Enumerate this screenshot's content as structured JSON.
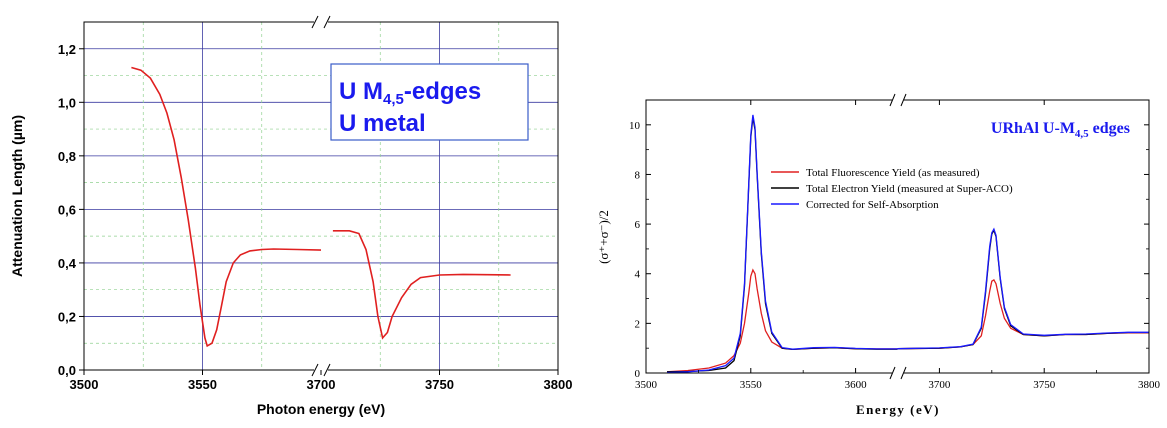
{
  "chart_data": [
    {
      "type": "line",
      "title": "",
      "annotation": {
        "line1_base": "U M",
        "line1_sub": "4,5",
        "line1_tail": "-edges",
        "line2": "U metal"
      },
      "xlabel": "Photon energy (eV)",
      "ylabel": "Attenuation Length (µm)",
      "x_ticks": [
        "3500",
        "3550",
        "3700",
        "3750",
        "3800"
      ],
      "y_ticks": [
        "0,0",
        "0,2",
        "0,4",
        "0,6",
        "0,8",
        "1,0",
        "1,2"
      ],
      "ylim": [
        0,
        1.3
      ],
      "broken_x_axis": true,
      "x_segments": [
        [
          3500,
          3600
        ],
        [
          3700,
          3800
        ]
      ],
      "grid": true,
      "series": [
        {
          "color": "#e02020",
          "segment1": [
            [
              3520,
              1.13
            ],
            [
              3524,
              1.12
            ],
            [
              3528,
              1.09
            ],
            [
              3532,
              1.03
            ],
            [
              3535,
              0.96
            ],
            [
              3538,
              0.86
            ],
            [
              3541,
              0.72
            ],
            [
              3544,
              0.56
            ],
            [
              3547,
              0.38
            ],
            [
              3549,
              0.24
            ],
            [
              3551,
              0.12
            ],
            [
              3552,
              0.09
            ],
            [
              3554,
              0.1
            ],
            [
              3556,
              0.15
            ],
            [
              3558,
              0.24
            ],
            [
              3560,
              0.33
            ],
            [
              3563,
              0.4
            ],
            [
              3566,
              0.43
            ],
            [
              3570,
              0.445
            ],
            [
              3575,
              0.45
            ],
            [
              3580,
              0.452
            ],
            [
              3590,
              0.45
            ],
            [
              3600,
              0.448
            ]
          ],
          "segment2": [
            [
              3705,
              0.52
            ],
            [
              3712,
              0.52
            ],
            [
              3716,
              0.51
            ],
            [
              3719,
              0.45
            ],
            [
              3722,
              0.33
            ],
            [
              3724,
              0.2
            ],
            [
              3726,
              0.12
            ],
            [
              3728,
              0.14
            ],
            [
              3730,
              0.2
            ],
            [
              3734,
              0.27
            ],
            [
              3738,
              0.32
            ],
            [
              3742,
              0.345
            ],
            [
              3750,
              0.355
            ],
            [
              3760,
              0.357
            ],
            [
              3770,
              0.356
            ],
            [
              3780,
              0.355
            ]
          ]
        }
      ]
    },
    {
      "type": "line",
      "title": "",
      "annotation": {
        "base": "URhAl U-M",
        "sub": "4,5",
        "tail": " edges"
      },
      "xlabel": "Energy (eV)",
      "ylabel": "(σ⁺+σ⁻)/2",
      "x_ticks": [
        "3500",
        "3550",
        "3600",
        "3700",
        "3750",
        "3800"
      ],
      "y_ticks": [
        "0",
        "2",
        "4",
        "6",
        "8",
        "10"
      ],
      "ylim": [
        0,
        11
      ],
      "broken_x_axis": true,
      "x_segments": [
        [
          3500,
          3620
        ],
        [
          3680,
          3800
        ]
      ],
      "grid": false,
      "legend_position": "upper-left",
      "series": [
        {
          "name": "Total Fluorescence Yield (as measured)",
          "color": "#e02020",
          "segment1": [
            [
              3510,
              0.05
            ],
            [
              3520,
              0.1
            ],
            [
              3530,
              0.2
            ],
            [
              3538,
              0.4
            ],
            [
              3542,
              0.7
            ],
            [
              3545,
              1.2
            ],
            [
              3547,
              2.0
            ],
            [
              3549,
              3.2
            ],
            [
              3550,
              3.9
            ],
            [
              3551,
              4.15
            ],
            [
              3552,
              4.0
            ],
            [
              3553,
              3.4
            ],
            [
              3555,
              2.4
            ],
            [
              3557,
              1.7
            ],
            [
              3560,
              1.25
            ],
            [
              3565,
              1.0
            ],
            [
              3570,
              0.95
            ],
            [
              3580,
              1.0
            ],
            [
              3590,
              1.02
            ],
            [
              3600,
              0.98
            ],
            [
              3610,
              0.97
            ],
            [
              3620,
              0.97
            ]
          ],
          "segment2": [
            [
              3680,
              0.98
            ],
            [
              3700,
              1.0
            ],
            [
              3710,
              1.05
            ],
            [
              3716,
              1.15
            ],
            [
              3720,
              1.5
            ],
            [
              3722,
              2.3
            ],
            [
              3724,
              3.3
            ],
            [
              3725,
              3.7
            ],
            [
              3726,
              3.75
            ],
            [
              3727,
              3.6
            ],
            [
              3729,
              2.8
            ],
            [
              3731,
              2.2
            ],
            [
              3734,
              1.8
            ],
            [
              3740,
              1.55
            ],
            [
              3750,
              1.5
            ],
            [
              3760,
              1.55
            ],
            [
              3770,
              1.55
            ],
            [
              3780,
              1.6
            ],
            [
              3790,
              1.62
            ],
            [
              3800,
              1.62
            ]
          ]
        },
        {
          "name": "Total Electron Yield (measured at Super-ACO)",
          "color": "#000000",
          "segment1": [
            [
              3510,
              0.05
            ],
            [
              3520,
              0.06
            ],
            [
              3530,
              0.1
            ],
            [
              3538,
              0.2
            ],
            [
              3542,
              0.5
            ],
            [
              3545,
              1.5
            ],
            [
              3547,
              3.5
            ],
            [
              3549,
              7.5
            ],
            [
              3550,
              9.5
            ],
            [
              3551,
              10.3
            ],
            [
              3552,
              9.8
            ],
            [
              3553,
              8.0
            ],
            [
              3555,
              4.8
            ],
            [
              3557,
              2.8
            ],
            [
              3560,
              1.6
            ],
            [
              3565,
              1.0
            ],
            [
              3570,
              0.95
            ],
            [
              3580,
              1.0
            ],
            [
              3590,
              1.02
            ],
            [
              3600,
              0.98
            ],
            [
              3610,
              0.96
            ],
            [
              3620,
              0.96
            ]
          ],
          "segment2": [
            [
              3680,
              0.98
            ],
            [
              3700,
              1.0
            ],
            [
              3710,
              1.05
            ],
            [
              3716,
              1.15
            ],
            [
              3720,
              1.8
            ],
            [
              3722,
              3.2
            ],
            [
              3724,
              5.0
            ],
            [
              3725,
              5.6
            ],
            [
              3726,
              5.75
            ],
            [
              3727,
              5.5
            ],
            [
              3729,
              3.8
            ],
            [
              3731,
              2.6
            ],
            [
              3734,
              1.9
            ],
            [
              3740,
              1.55
            ],
            [
              3750,
              1.5
            ],
            [
              3760,
              1.55
            ],
            [
              3770,
              1.55
            ],
            [
              3780,
              1.6
            ],
            [
              3790,
              1.63
            ],
            [
              3800,
              1.63
            ]
          ]
        },
        {
          "name": "Corrected for Self-Absorption",
          "color": "#1a1aff",
          "segment1": [
            [
              3510,
              0.02
            ],
            [
              3520,
              0.05
            ],
            [
              3530,
              0.12
            ],
            [
              3538,
              0.3
            ],
            [
              3542,
              0.6
            ],
            [
              3545,
              1.6
            ],
            [
              3547,
              3.6
            ],
            [
              3549,
              7.6
            ],
            [
              3550,
              9.6
            ],
            [
              3551,
              10.4
            ],
            [
              3552,
              9.9
            ],
            [
              3553,
              8.1
            ],
            [
              3555,
              4.9
            ],
            [
              3557,
              2.9
            ],
            [
              3560,
              1.65
            ],
            [
              3565,
              1.02
            ],
            [
              3570,
              0.96
            ],
            [
              3580,
              1.02
            ],
            [
              3590,
              1.03
            ],
            [
              3600,
              0.99
            ],
            [
              3610,
              0.97
            ],
            [
              3620,
              0.97
            ]
          ],
          "segment2": [
            [
              3680,
              0.98
            ],
            [
              3700,
              1.01
            ],
            [
              3710,
              1.06
            ],
            [
              3716,
              1.16
            ],
            [
              3720,
              1.85
            ],
            [
              3722,
              3.3
            ],
            [
              3724,
              5.1
            ],
            [
              3725,
              5.65
            ],
            [
              3726,
              5.8
            ],
            [
              3727,
              5.55
            ],
            [
              3729,
              3.85
            ],
            [
              3731,
              2.65
            ],
            [
              3734,
              1.95
            ],
            [
              3740,
              1.57
            ],
            [
              3750,
              1.52
            ],
            [
              3760,
              1.56
            ],
            [
              3770,
              1.57
            ],
            [
              3780,
              1.61
            ],
            [
              3790,
              1.64
            ],
            [
              3800,
              1.64
            ]
          ]
        }
      ]
    }
  ]
}
